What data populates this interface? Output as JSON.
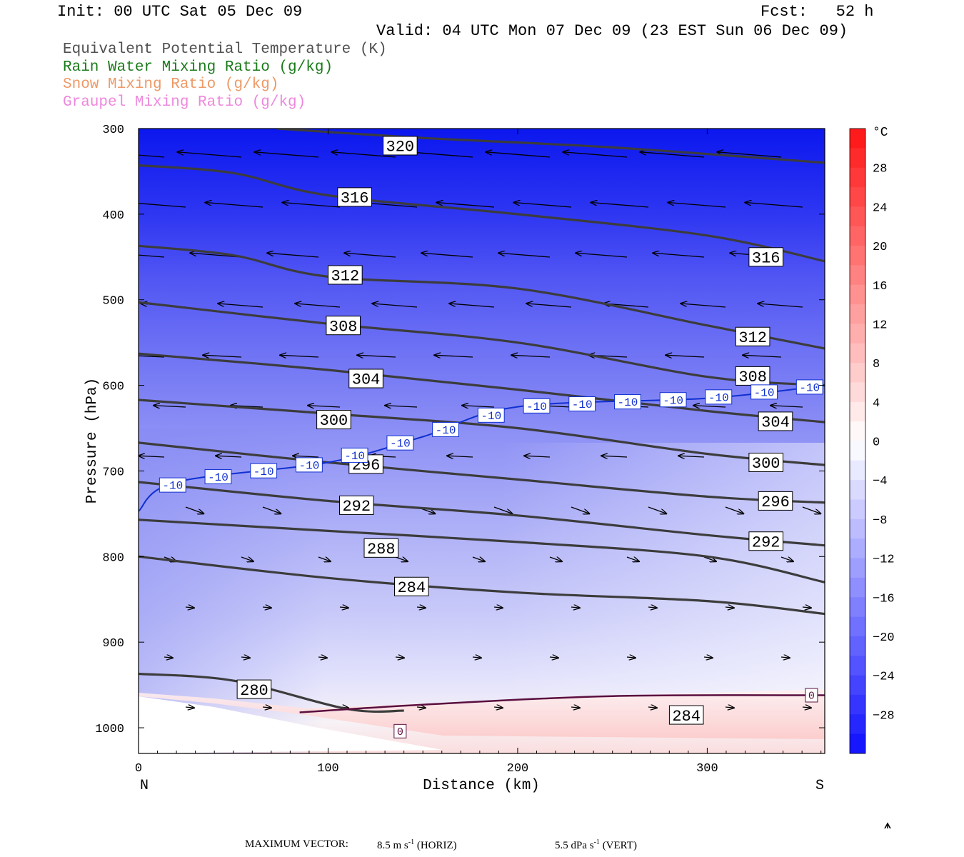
{
  "header": {
    "init": "Init: 00 UTC Sat 05 Dec 09",
    "fcst": "Fcst:   52 h",
    "valid": "Valid: 04 UTC Mon 07 Dec 09 (23 EST Sun 06 Dec 09)"
  },
  "legend": [
    {
      "text": "Equivalent Potential Temperature (K)",
      "color": "#505050"
    },
    {
      "text": "Rain Water Mixing Ratio (g/kg)",
      "color": "#1a7a1a"
    },
    {
      "text": "Snow Mixing Ratio (g/kg)",
      "color": "#ee9966"
    },
    {
      "text": "Graupel Mixing Ratio (g/kg)",
      "color": "#ee88dd"
    }
  ],
  "footer": {
    "label": "MAXIMUM VECTOR:",
    "horiz_value": "8.5",
    "horiz_unit": "m s",
    "horiz_tag": "(HORIZ)",
    "vert_value": "5.5",
    "vert_unit": "dPa s",
    "vert_tag": "(VERT)",
    "exp": "-1"
  },
  "chart_data": {
    "type": "contour",
    "xlabel": "Distance (km)",
    "ylabel": "Pressure (hPa)",
    "x_range": [
      0,
      362
    ],
    "y_range_hPa": [
      300,
      1030
    ],
    "x_ticks": [
      0,
      100,
      200,
      300
    ],
    "y_ticks": [
      300,
      400,
      500,
      600,
      700,
      800,
      900,
      1000
    ],
    "x_end_labels": {
      "left": "N",
      "right": "S"
    },
    "colorbar": {
      "unit": "°C",
      "ticks": [
        28,
        24,
        20,
        16,
        12,
        8,
        4,
        0,
        -4,
        -8,
        -12,
        -16,
        -20,
        -24,
        -28
      ],
      "tick_labels": [
        "28",
        "24",
        "20",
        "16",
        "12",
        "8",
        "4",
        "0",
        "−4",
        "−8",
        "−12",
        "−16",
        "−20",
        "−24",
        "−28"
      ],
      "range": [
        -32,
        32
      ]
    },
    "theta_e_contours": [
      {
        "label": "320",
        "points": [
          [
            73,
            300
          ],
          [
            150,
            311
          ],
          [
            250,
            322
          ],
          [
            362,
            340
          ]
        ],
        "label_at": [
          138,
          320
        ]
      },
      {
        "label": "316",
        "points": [
          [
            0,
            343
          ],
          [
            50,
            352
          ],
          [
            100,
            378
          ],
          [
            200,
            400
          ],
          [
            300,
            425
          ],
          [
            362,
            455
          ]
        ],
        "label_at": [
          114,
          380
        ],
        "label2_at": [
          331,
          450
        ]
      },
      {
        "label": "312",
        "points": [
          [
            0,
            437
          ],
          [
            50,
            448
          ],
          [
            100,
            473
          ],
          [
            200,
            487
          ],
          [
            300,
            530
          ],
          [
            362,
            557
          ]
        ],
        "label_at": [
          109,
          471
        ],
        "label2_at": [
          324,
          543
        ]
      },
      {
        "label": "308",
        "points": [
          [
            0,
            503
          ],
          [
            100,
            528
          ],
          [
            200,
            550
          ],
          [
            300,
            590
          ],
          [
            362,
            600
          ]
        ],
        "label_at": [
          108,
          530
        ],
        "label2_at": [
          324,
          589
        ]
      },
      {
        "label": "304",
        "points": [
          [
            0,
            563
          ],
          [
            100,
            582
          ],
          [
            200,
            605
          ],
          [
            300,
            630
          ],
          [
            362,
            643
          ]
        ],
        "label_at": [
          120,
          592
        ],
        "label2_at": [
          336,
          642
        ]
      },
      {
        "label": "300",
        "points": [
          [
            0,
            617
          ],
          [
            100,
            633
          ],
          [
            200,
            650
          ],
          [
            300,
            680
          ],
          [
            362,
            693
          ]
        ],
        "label_at": [
          103,
          640
        ],
        "label2_at": [
          331,
          690
        ]
      },
      {
        "label": "296",
        "points": [
          [
            0,
            667
          ],
          [
            100,
            690
          ],
          [
            200,
            710
          ],
          [
            300,
            730
          ],
          [
            362,
            737
          ]
        ],
        "label_at": [
          120,
          692
        ],
        "label2_at": [
          336,
          735
        ]
      },
      {
        "label": "292",
        "points": [
          [
            0,
            713
          ],
          [
            100,
            735
          ],
          [
            200,
            752
          ],
          [
            300,
            775
          ],
          [
            362,
            787
          ]
        ],
        "label_at": [
          115,
          740
        ],
        "label2_at": [
          331,
          782
        ]
      },
      {
        "label": "288",
        "points": [
          [
            0,
            757
          ],
          [
            100,
            770
          ],
          [
            200,
            783
          ],
          [
            300,
            800
          ],
          [
            362,
            830
          ]
        ],
        "label_at": [
          128,
          790
        ]
      },
      {
        "label": "284",
        "points": [
          [
            0,
            800
          ],
          [
            100,
            825
          ],
          [
            200,
            842
          ],
          [
            300,
            852
          ],
          [
            362,
            867
          ]
        ],
        "label_at": [
          144,
          835
        ],
        "label2_at": [
          289,
          985
        ]
      },
      {
        "label": "280",
        "points": [
          [
            0,
            937
          ],
          [
            50,
            945
          ],
          [
            110,
            978
          ],
          [
            140,
            980
          ]
        ],
        "label_at": [
          61,
          955
        ]
      }
    ],
    "temperature_contour": {
      "label": "-10",
      "points": [
        [
          0,
          747
        ],
        [
          20,
          713
        ],
        [
          100,
          690
        ],
        [
          150,
          660
        ],
        [
          200,
          625
        ],
        [
          300,
          615
        ],
        [
          362,
          600
        ]
      ]
    },
    "zero_contour": {
      "label": "0",
      "points": [
        [
          85,
          982
        ],
        [
          150,
          973
        ],
        [
          250,
          963
        ],
        [
          362,
          962
        ]
      ]
    },
    "max_vector": {
      "horiz": "8.5 m s-1",
      "vert": "5.5 dPa s-1"
    }
  }
}
